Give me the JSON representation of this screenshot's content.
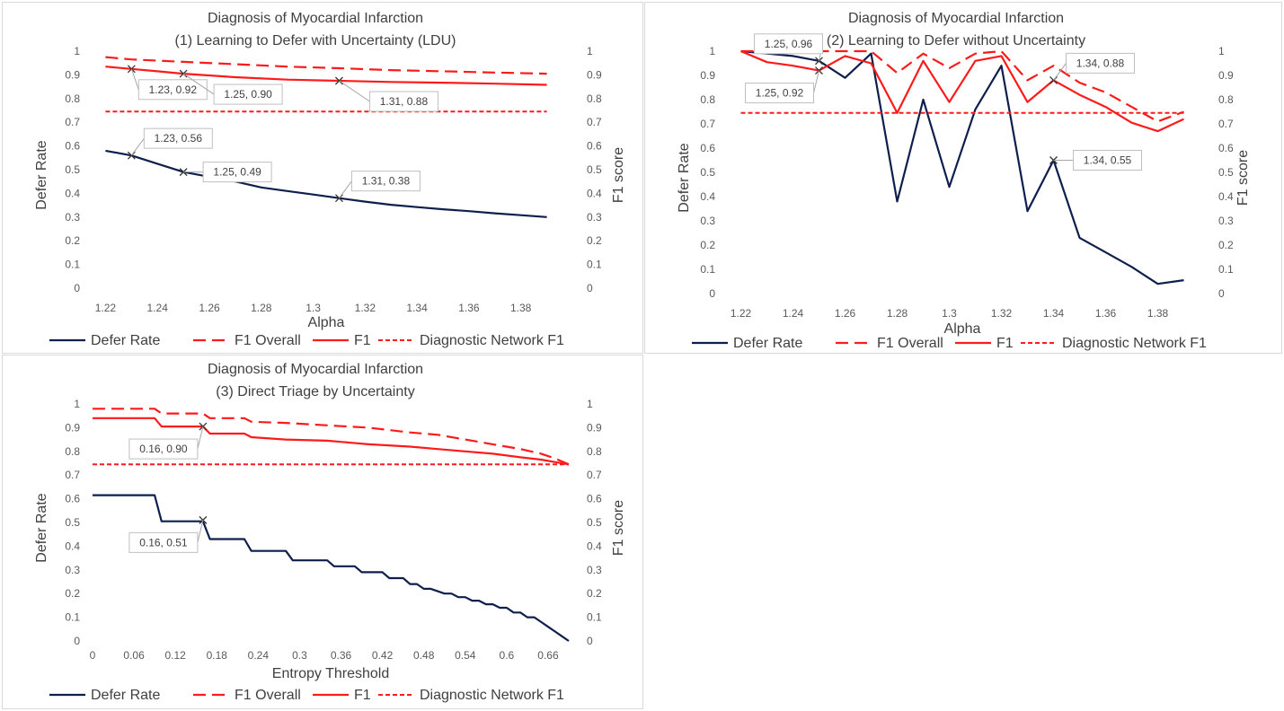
{
  "colors": {
    "defer": "#0f1f4d",
    "f1": "#ff1a1a",
    "f1_overall": "#ff1a1a",
    "diag": "#ff1a1a"
  },
  "chart_data": [
    {
      "type": "line",
      "title": "Diagnosis of Myocardial Infarction",
      "subtitle": "(1) Learning to Defer with Uncertainty (LDU)",
      "xlabel": "Alpha",
      "ylabel": "Defer Rate",
      "y2label": "F1 score",
      "xlim": [
        1.215,
        1.395
      ],
      "ylim": [
        0,
        1
      ],
      "y2lim": [
        0,
        1
      ],
      "xticks": [
        "1.22",
        "1.24",
        "1.26",
        "1.28",
        "1.3",
        "1.32",
        "1.34",
        "1.36",
        "1.38"
      ],
      "yticks": [
        "0",
        "0.1",
        "0.2",
        "0.3",
        "0.4",
        "0.5",
        "0.6",
        "0.7",
        "0.8",
        "0.9",
        "1"
      ],
      "series": [
        {
          "name": "Defer Rate",
          "axis": "left",
          "style": "solid-dark",
          "x": [
            1.22,
            1.23,
            1.24,
            1.25,
            1.26,
            1.27,
            1.28,
            1.29,
            1.3,
            1.31,
            1.32,
            1.33,
            1.34,
            1.35,
            1.36,
            1.37,
            1.38,
            1.39
          ],
          "y": [
            0.58,
            0.56,
            0.525,
            0.49,
            0.47,
            0.45,
            0.425,
            0.41,
            0.395,
            0.38,
            0.365,
            0.352,
            0.342,
            0.333,
            0.325,
            0.316,
            0.308,
            0.3
          ]
        },
        {
          "name": "F1 Overall",
          "axis": "right",
          "style": "long-dash",
          "x": [
            1.22,
            1.23,
            1.25,
            1.27,
            1.29,
            1.31,
            1.33,
            1.35,
            1.37,
            1.39
          ],
          "y": [
            0.975,
            0.965,
            0.955,
            0.945,
            0.935,
            0.928,
            0.92,
            0.915,
            0.91,
            0.905
          ]
        },
        {
          "name": "F1",
          "axis": "right",
          "style": "solid-red",
          "x": [
            1.22,
            1.23,
            1.24,
            1.25,
            1.27,
            1.29,
            1.31,
            1.33,
            1.35,
            1.37,
            1.39
          ],
          "y": [
            0.935,
            0.925,
            0.915,
            0.905,
            0.89,
            0.88,
            0.875,
            0.87,
            0.867,
            0.863,
            0.858
          ]
        },
        {
          "name": "Diagnostic Network F1",
          "axis": "right",
          "style": "short-dash",
          "x": [
            1.22,
            1.39
          ],
          "y": [
            0.745,
            0.745
          ]
        }
      ],
      "annotations": [
        {
          "label": "1.23, 0.92",
          "x": 1.23,
          "y": 0.925,
          "axis": "right",
          "pos": "below-right"
        },
        {
          "label": "1.25, 0.90",
          "x": 1.25,
          "y": 0.905,
          "axis": "right",
          "pos": "below-right-far"
        },
        {
          "label": "1.31, 0.88",
          "x": 1.31,
          "y": 0.875,
          "axis": "right",
          "pos": "below-right-far"
        },
        {
          "label": "1.23, 0.56",
          "x": 1.23,
          "y": 0.56,
          "axis": "left",
          "pos": "above-right"
        },
        {
          "label": "1.25, 0.49",
          "x": 1.25,
          "y": 0.49,
          "axis": "left",
          "pos": "right"
        },
        {
          "label": "1.31, 0.38",
          "x": 1.31,
          "y": 0.38,
          "axis": "left",
          "pos": "above-right"
        }
      ],
      "legend": [
        "Defer Rate",
        "F1 Overall",
        "F1",
        "Diagnostic Network F1"
      ]
    },
    {
      "type": "line",
      "title": "Diagnosis of Myocardial Infarction",
      "subtitle": "(2) Learning to Defer without Uncertainty",
      "xlabel": "Alpha",
      "ylabel": "Defer Rate",
      "y2label": "F1 score",
      "xlim": [
        1.215,
        1.395
      ],
      "ylim": [
        0,
        1
      ],
      "y2lim": [
        0,
        1
      ],
      "xticks": [
        "1.22",
        "1.24",
        "1.26",
        "1.28",
        "1.3",
        "1.32",
        "1.34",
        "1.36",
        "1.38"
      ],
      "yticks": [
        "0",
        "0.1",
        "0.2",
        "0.3",
        "0.4",
        "0.5",
        "0.6",
        "0.7",
        "0.8",
        "0.9",
        "1"
      ],
      "series": [
        {
          "name": "Defer Rate",
          "axis": "left",
          "style": "solid-dark",
          "x": [
            1.22,
            1.23,
            1.24,
            1.25,
            1.26,
            1.27,
            1.28,
            1.29,
            1.3,
            1.31,
            1.32,
            1.33,
            1.34,
            1.35,
            1.36,
            1.37,
            1.38,
            1.39
          ],
          "y": [
            1.0,
            0.99,
            0.98,
            0.96,
            0.89,
            0.99,
            0.38,
            0.8,
            0.44,
            0.76,
            0.94,
            0.34,
            0.55,
            0.23,
            0.17,
            0.11,
            0.04,
            0.055
          ]
        },
        {
          "name": "F1 Overall",
          "axis": "right",
          "style": "long-dash",
          "x": [
            1.22,
            1.23,
            1.24,
            1.25,
            1.26,
            1.27,
            1.28,
            1.29,
            1.3,
            1.31,
            1.32,
            1.33,
            1.34,
            1.35,
            1.36,
            1.37,
            1.38,
            1.39
          ],
          "y": [
            1.0,
            1.0,
            1.0,
            1.0,
            1.0,
            1.0,
            0.91,
            0.99,
            0.93,
            0.99,
            1.0,
            0.88,
            0.94,
            0.87,
            0.83,
            0.77,
            0.71,
            0.75
          ]
        },
        {
          "name": "F1",
          "axis": "right",
          "style": "solid-red",
          "x": [
            1.22,
            1.23,
            1.24,
            1.25,
            1.26,
            1.27,
            1.28,
            1.29,
            1.3,
            1.31,
            1.32,
            1.33,
            1.34,
            1.35,
            1.36,
            1.37,
            1.38,
            1.39
          ],
          "y": [
            1.0,
            0.955,
            0.94,
            0.92,
            0.98,
            0.95,
            0.745,
            0.96,
            0.79,
            0.96,
            0.98,
            0.79,
            0.88,
            0.82,
            0.77,
            0.705,
            0.67,
            0.72
          ]
        },
        {
          "name": "Diagnostic Network F1",
          "axis": "right",
          "style": "short-dash",
          "x": [
            1.22,
            1.39
          ],
          "y": [
            0.745,
            0.745
          ]
        }
      ],
      "annotations": [
        {
          "label": "1.25, 0.96",
          "x": 1.25,
          "y": 0.96,
          "axis": "left",
          "pos": "above-left"
        },
        {
          "label": "1.25, 0.92",
          "x": 1.25,
          "y": 0.92,
          "axis": "right",
          "pos": "below-left"
        },
        {
          "label": "1.34, 0.88",
          "x": 1.34,
          "y": 0.88,
          "axis": "right",
          "pos": "above-right"
        },
        {
          "label": "1.34, 0.55",
          "x": 1.34,
          "y": 0.55,
          "axis": "left",
          "pos": "right"
        }
      ],
      "legend": [
        "Defer Rate",
        "F1 Overall",
        "F1",
        "Diagnostic Network F1"
      ]
    },
    {
      "type": "line",
      "title": "Diagnosis of Myocardial Infarction",
      "subtitle": "(3) Direct Triage by Uncertainty",
      "xlabel": "Entropy Threshold",
      "ylabel": "Defer Rate",
      "y2label": "F1 score",
      "xlim": [
        0,
        0.69
      ],
      "ylim": [
        0,
        1
      ],
      "y2lim": [
        0,
        1
      ],
      "xticks": [
        "0",
        "0.06",
        "0.12",
        "0.18",
        "0.24",
        "0.3",
        "0.36",
        "0.42",
        "0.48",
        "0.54",
        "0.6",
        "0.66"
      ],
      "yticks": [
        "0",
        "0.1",
        "0.2",
        "0.3",
        "0.4",
        "0.5",
        "0.6",
        "0.7",
        "0.8",
        "0.9",
        "1"
      ],
      "series": [
        {
          "name": "Defer Rate",
          "axis": "left",
          "style": "solid-dark",
          "x": [
            0,
            0.09,
            0.1,
            0.16,
            0.17,
            0.22,
            0.23,
            0.28,
            0.29,
            0.34,
            0.35,
            0.38,
            0.39,
            0.42,
            0.43,
            0.45,
            0.46,
            0.47,
            0.48,
            0.49,
            0.5,
            0.51,
            0.52,
            0.53,
            0.54,
            0.55,
            0.56,
            0.57,
            0.58,
            0.59,
            0.6,
            0.61,
            0.62,
            0.63,
            0.64,
            0.65,
            0.66,
            0.67,
            0.68,
            0.69
          ],
          "y": [
            0.615,
            0.615,
            0.505,
            0.505,
            0.43,
            0.43,
            0.38,
            0.38,
            0.34,
            0.34,
            0.315,
            0.315,
            0.29,
            0.29,
            0.265,
            0.265,
            0.24,
            0.24,
            0.22,
            0.22,
            0.21,
            0.2,
            0.2,
            0.185,
            0.185,
            0.17,
            0.17,
            0.155,
            0.155,
            0.14,
            0.14,
            0.12,
            0.12,
            0.1,
            0.1,
            0.08,
            0.06,
            0.04,
            0.02,
            0.0
          ]
        },
        {
          "name": "F1 Overall",
          "axis": "right",
          "style": "long-dash",
          "x": [
            0,
            0.09,
            0.1,
            0.16,
            0.17,
            0.22,
            0.23,
            0.28,
            0.34,
            0.4,
            0.46,
            0.5,
            0.54,
            0.58,
            0.62,
            0.65,
            0.67,
            0.69
          ],
          "y": [
            0.98,
            0.98,
            0.96,
            0.96,
            0.94,
            0.94,
            0.925,
            0.92,
            0.91,
            0.9,
            0.88,
            0.87,
            0.85,
            0.83,
            0.81,
            0.79,
            0.77,
            0.745
          ]
        },
        {
          "name": "F1",
          "axis": "right",
          "style": "solid-red",
          "x": [
            0,
            0.09,
            0.1,
            0.16,
            0.17,
            0.22,
            0.23,
            0.28,
            0.34,
            0.36,
            0.4,
            0.46,
            0.5,
            0.54,
            0.58,
            0.62,
            0.65,
            0.67,
            0.69
          ],
          "y": [
            0.94,
            0.94,
            0.905,
            0.905,
            0.875,
            0.875,
            0.86,
            0.85,
            0.845,
            0.84,
            0.83,
            0.82,
            0.81,
            0.8,
            0.79,
            0.775,
            0.765,
            0.755,
            0.745
          ]
        },
        {
          "name": "Diagnostic Network F1",
          "axis": "right",
          "style": "short-dash",
          "x": [
            0,
            0.69
          ],
          "y": [
            0.745,
            0.745
          ]
        }
      ],
      "annotations": [
        {
          "label": "0.16, 0.90",
          "x": 0.16,
          "y": 0.905,
          "axis": "right",
          "pos": "below-left"
        },
        {
          "label": "0.16, 0.51",
          "x": 0.16,
          "y": 0.51,
          "axis": "left",
          "pos": "below-left"
        }
      ],
      "legend": [
        "Defer Rate",
        "F1 Overall",
        "F1",
        "Diagnostic Network F1"
      ]
    }
  ]
}
